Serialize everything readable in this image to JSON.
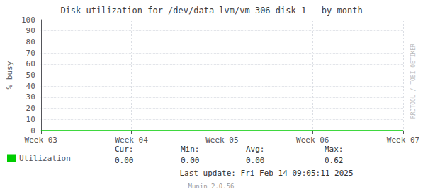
{
  "chart_data": {
    "type": "line",
    "title": "Disk utilization for /dev/data-lvm/vm-306-disk-1 - by month",
    "y_label": "% busy",
    "categories": [
      "Week 03",
      "Week 04",
      "Week 05",
      "Week 06",
      "Week 07"
    ],
    "series": [
      {
        "name": "Utilization",
        "color": "#00cc00",
        "values": [
          0,
          0,
          0,
          0,
          0
        ]
      }
    ],
    "ylim": [
      0,
      100
    ],
    "yticks": [
      0,
      10,
      20,
      30,
      40,
      50,
      60,
      70,
      80,
      90,
      100
    ],
    "grid": true,
    "legend": "lower left",
    "annotations": [
      "Cur:",
      "0.00",
      "Min:",
      "0.00",
      "Avg:",
      "0.00",
      "Max:",
      "0.62",
      "Last update: Fri Feb 14 09:05:11 2025",
      "Munin 2.0.56",
      "RRDTOOL / TOBI OETIKER"
    ]
  }
}
